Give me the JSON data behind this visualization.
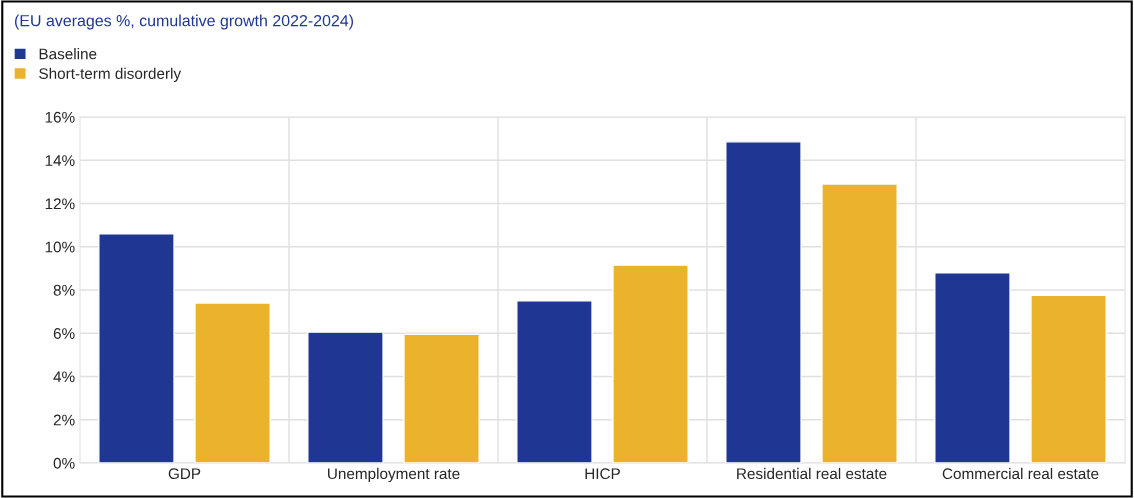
{
  "chart_data": {
    "type": "bar",
    "title": "(EU averages %, cumulative growth 2022-2024)",
    "categories": [
      "GDP",
      "Unemployment rate",
      "HICP",
      "Residential real estate",
      "Commercial real estate"
    ],
    "series": [
      {
        "name": "Baseline",
        "color": "#1f3693",
        "values": [
          10.6,
          6.05,
          7.5,
          14.85,
          8.8
        ]
      },
      {
        "name": "Short-term disorderly",
        "color": "#ebb22b",
        "values": [
          7.4,
          5.95,
          9.15,
          12.9,
          7.75
        ]
      }
    ],
    "ylim": [
      0,
      16
    ],
    "yticks": [
      {
        "value": 0,
        "label": "0%"
      },
      {
        "value": 2,
        "label": "2%"
      },
      {
        "value": 4,
        "label": "4%"
      },
      {
        "value": 6,
        "label": "6%"
      },
      {
        "value": 8,
        "label": "8%"
      },
      {
        "value": 10,
        "label": "10%"
      },
      {
        "value": 12,
        "label": "12%"
      },
      {
        "value": 14,
        "label": "14%"
      },
      {
        "value": 16,
        "label": "16%"
      }
    ],
    "grid": true,
    "legend": "top left"
  }
}
